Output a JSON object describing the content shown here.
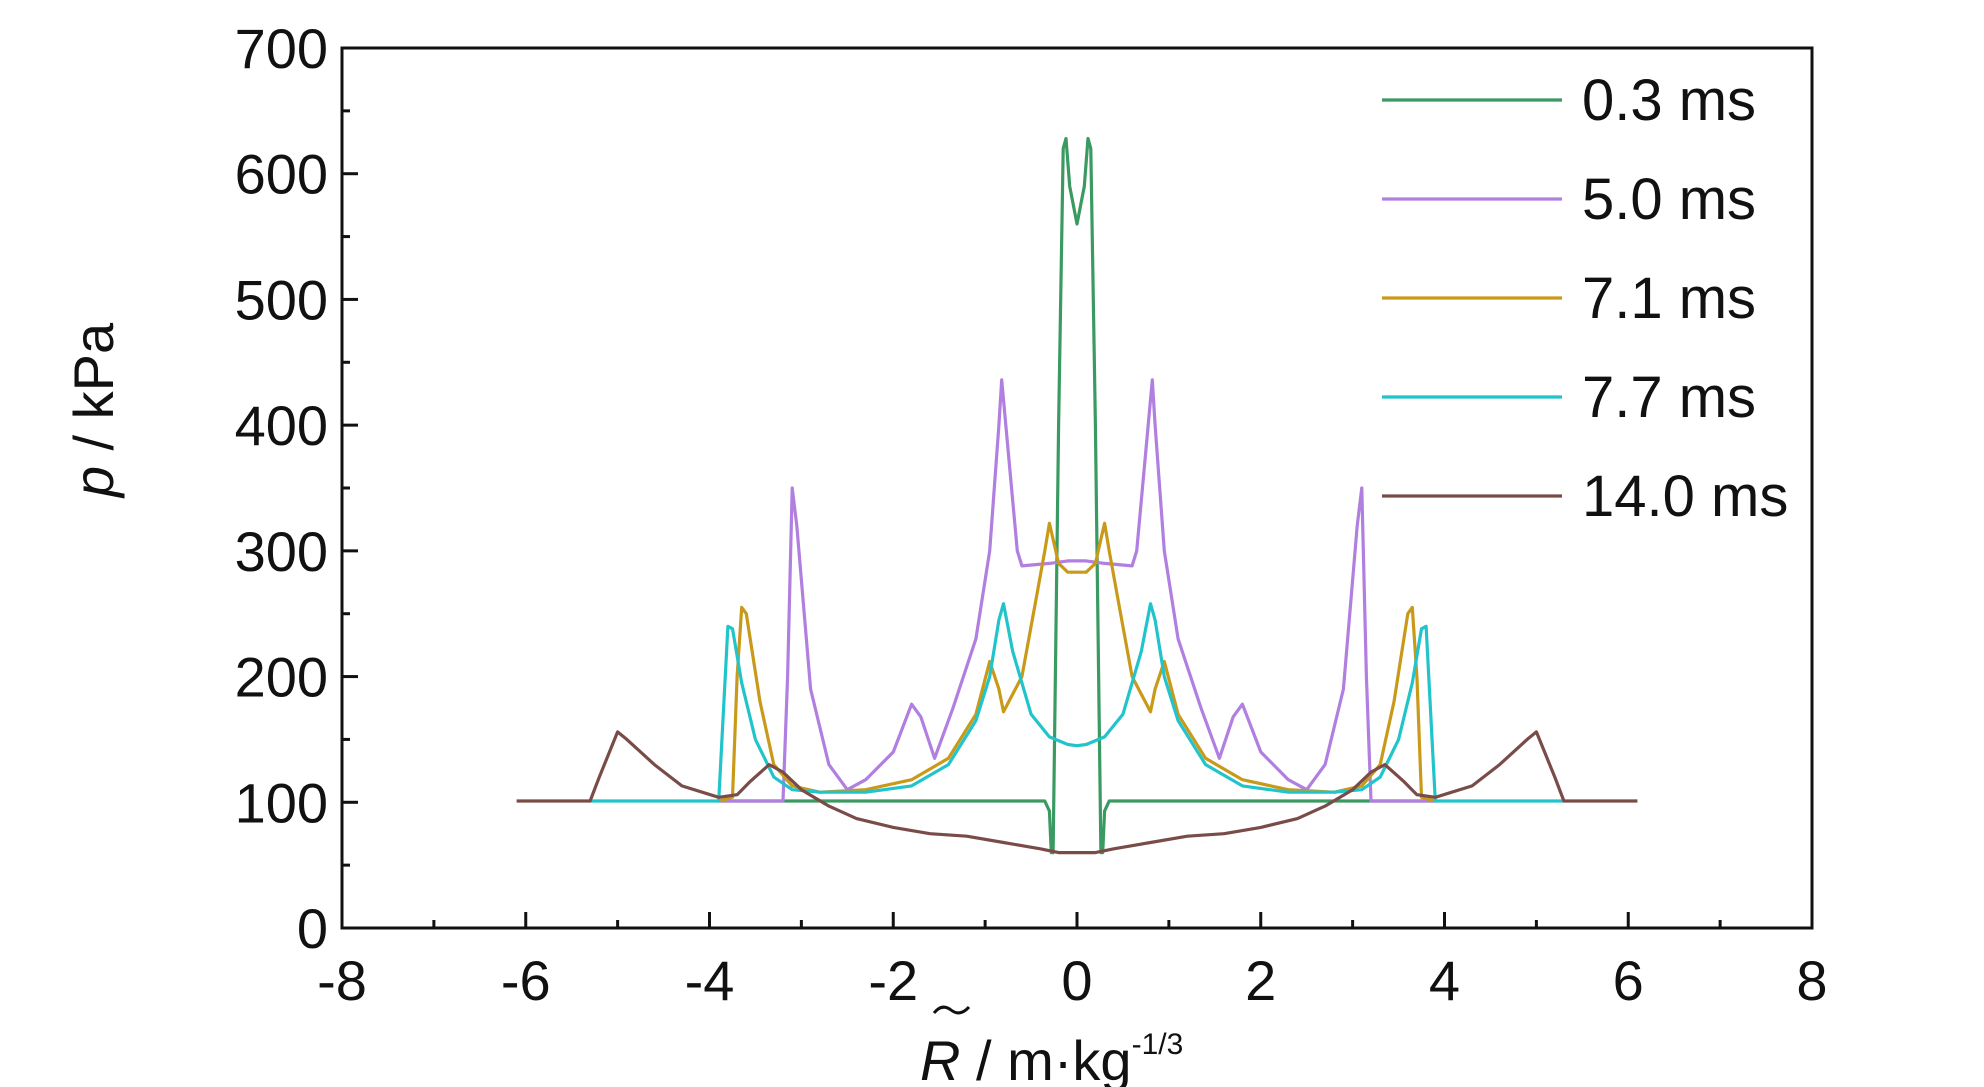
{
  "chart_data": {
    "type": "line",
    "xlabel": {
      "symbol": "R",
      "units": " / m·kg",
      "exponent": "-1/3"
    },
    "ylabel": {
      "symbol": "p",
      "units": " / kPa"
    },
    "xlim": [
      -8,
      8
    ],
    "ylim": [
      0,
      700
    ],
    "xticks": [
      -8,
      -6,
      -4,
      -2,
      0,
      2,
      4,
      6,
      8
    ],
    "yticks": [
      0,
      100,
      200,
      300,
      400,
      500,
      600,
      700
    ],
    "grid": false,
    "legend_position": "top-right",
    "series": [
      {
        "name": "0.3 ms",
        "color": "#3a9a62",
        "points": [
          [
            -3.9,
            101
          ],
          [
            -0.35,
            101
          ],
          [
            -0.3,
            93
          ],
          [
            -0.28,
            60
          ],
          [
            -0.26,
            60
          ],
          [
            -0.2,
            400
          ],
          [
            -0.15,
            620
          ],
          [
            -0.12,
            628
          ],
          [
            -0.08,
            590
          ],
          [
            0,
            560
          ],
          [
            0.08,
            590
          ],
          [
            0.12,
            628
          ],
          [
            0.15,
            620
          ],
          [
            0.2,
            400
          ],
          [
            0.26,
            60
          ],
          [
            0.28,
            60
          ],
          [
            0.3,
            93
          ],
          [
            0.35,
            101
          ],
          [
            3.9,
            101
          ]
        ]
      },
      {
        "name": "5.0 ms",
        "color": "#b07fe0",
        "points": [
          [
            -3.9,
            101
          ],
          [
            -3.2,
            101
          ],
          [
            -3.15,
            200
          ],
          [
            -3.1,
            350
          ],
          [
            -3.05,
            320
          ],
          [
            -2.9,
            190
          ],
          [
            -2.7,
            130
          ],
          [
            -2.5,
            110
          ],
          [
            -2.3,
            118
          ],
          [
            -2.0,
            140
          ],
          [
            -1.8,
            178
          ],
          [
            -1.7,
            168
          ],
          [
            -1.55,
            135
          ],
          [
            -1.35,
            175
          ],
          [
            -1.1,
            230
          ],
          [
            -0.95,
            300
          ],
          [
            -0.85,
            400
          ],
          [
            -0.82,
            436
          ],
          [
            -0.75,
            380
          ],
          [
            -0.65,
            300
          ],
          [
            -0.6,
            288
          ],
          [
            -0.3,
            290
          ],
          [
            -0.1,
            292
          ],
          [
            0,
            292
          ],
          [
            0.1,
            292
          ],
          [
            0.3,
            290
          ],
          [
            0.6,
            288
          ],
          [
            0.65,
            300
          ],
          [
            0.75,
            380
          ],
          [
            0.82,
            436
          ],
          [
            0.85,
            400
          ],
          [
            0.95,
            300
          ],
          [
            1.1,
            230
          ],
          [
            1.35,
            175
          ],
          [
            1.55,
            135
          ],
          [
            1.7,
            168
          ],
          [
            1.8,
            178
          ],
          [
            2.0,
            140
          ],
          [
            2.3,
            118
          ],
          [
            2.5,
            110
          ],
          [
            2.7,
            130
          ],
          [
            2.9,
            190
          ],
          [
            3.05,
            320
          ],
          [
            3.1,
            350
          ],
          [
            3.15,
            200
          ],
          [
            3.2,
            101
          ],
          [
            3.9,
            101
          ]
        ]
      },
      {
        "name": "7.1 ms",
        "color": "#c99a1a",
        "points": [
          [
            -3.9,
            101
          ],
          [
            -3.75,
            104
          ],
          [
            -3.7,
            200
          ],
          [
            -3.65,
            255
          ],
          [
            -3.6,
            250
          ],
          [
            -3.45,
            180
          ],
          [
            -3.3,
            130
          ],
          [
            -3.1,
            113
          ],
          [
            -2.8,
            108
          ],
          [
            -2.3,
            110
          ],
          [
            -1.8,
            118
          ],
          [
            -1.4,
            135
          ],
          [
            -1.1,
            170
          ],
          [
            -0.95,
            212
          ],
          [
            -0.85,
            190
          ],
          [
            -0.8,
            172
          ],
          [
            -0.6,
            200
          ],
          [
            -0.45,
            260
          ],
          [
            -0.35,
            300
          ],
          [
            -0.3,
            322
          ],
          [
            -0.2,
            290
          ],
          [
            -0.1,
            283
          ],
          [
            0,
            283
          ],
          [
            0.1,
            283
          ],
          [
            0.2,
            290
          ],
          [
            0.3,
            322
          ],
          [
            0.35,
            300
          ],
          [
            0.45,
            260
          ],
          [
            0.6,
            200
          ],
          [
            0.8,
            172
          ],
          [
            0.85,
            190
          ],
          [
            0.95,
            212
          ],
          [
            1.1,
            170
          ],
          [
            1.4,
            135
          ],
          [
            1.8,
            118
          ],
          [
            2.3,
            110
          ],
          [
            2.8,
            108
          ],
          [
            3.1,
            113
          ],
          [
            3.3,
            130
          ],
          [
            3.45,
            180
          ],
          [
            3.6,
            250
          ],
          [
            3.65,
            255
          ],
          [
            3.7,
            200
          ],
          [
            3.75,
            104
          ],
          [
            3.9,
            101
          ]
        ]
      },
      {
        "name": "7.7 ms",
        "color": "#22c4cc",
        "points": [
          [
            -5.3,
            101
          ],
          [
            -3.9,
            101
          ],
          [
            -3.8,
            240
          ],
          [
            -3.75,
            238
          ],
          [
            -3.65,
            195
          ],
          [
            -3.5,
            150
          ],
          [
            -3.3,
            120
          ],
          [
            -3.1,
            110
          ],
          [
            -2.8,
            108
          ],
          [
            -2.3,
            108
          ],
          [
            -1.8,
            113
          ],
          [
            -1.4,
            130
          ],
          [
            -1.1,
            165
          ],
          [
            -0.95,
            200
          ],
          [
            -0.85,
            245
          ],
          [
            -0.8,
            258
          ],
          [
            -0.7,
            220
          ],
          [
            -0.5,
            170
          ],
          [
            -0.3,
            152
          ],
          [
            -0.1,
            146
          ],
          [
            0,
            145
          ],
          [
            0.1,
            146
          ],
          [
            0.3,
            152
          ],
          [
            0.5,
            170
          ],
          [
            0.7,
            220
          ],
          [
            0.8,
            258
          ],
          [
            0.85,
            245
          ],
          [
            0.95,
            200
          ],
          [
            1.1,
            165
          ],
          [
            1.4,
            130
          ],
          [
            1.8,
            113
          ],
          [
            2.3,
            108
          ],
          [
            2.8,
            108
          ],
          [
            3.1,
            110
          ],
          [
            3.3,
            120
          ],
          [
            3.5,
            150
          ],
          [
            3.65,
            195
          ],
          [
            3.75,
            238
          ],
          [
            3.8,
            240
          ],
          [
            3.9,
            101
          ],
          [
            5.3,
            101
          ]
        ]
      },
      {
        "name": "14.0 ms",
        "color": "#7a4c48",
        "points": [
          [
            -6.1,
            101
          ],
          [
            -5.3,
            101
          ],
          [
            -5.2,
            120
          ],
          [
            -5.0,
            156
          ],
          [
            -4.9,
            150
          ],
          [
            -4.6,
            130
          ],
          [
            -4.3,
            113
          ],
          [
            -3.9,
            104
          ],
          [
            -3.7,
            106
          ],
          [
            -3.55,
            117
          ],
          [
            -3.35,
            130
          ],
          [
            -3.2,
            124
          ],
          [
            -3.0,
            110
          ],
          [
            -2.7,
            97
          ],
          [
            -2.4,
            87
          ],
          [
            -2.0,
            80
          ],
          [
            -1.6,
            75
          ],
          [
            -1.2,
            73
          ],
          [
            -0.8,
            68
          ],
          [
            -0.4,
            63
          ],
          [
            -0.2,
            60
          ],
          [
            0,
            60
          ],
          [
            0.2,
            60
          ],
          [
            0.4,
            63
          ],
          [
            0.8,
            68
          ],
          [
            1.2,
            73
          ],
          [
            1.6,
            75
          ],
          [
            2.0,
            80
          ],
          [
            2.4,
            87
          ],
          [
            2.7,
            97
          ],
          [
            3.0,
            110
          ],
          [
            3.2,
            124
          ],
          [
            3.35,
            130
          ],
          [
            3.55,
            117
          ],
          [
            3.7,
            106
          ],
          [
            3.9,
            104
          ],
          [
            4.3,
            113
          ],
          [
            4.6,
            130
          ],
          [
            4.9,
            150
          ],
          [
            5.0,
            156
          ],
          [
            5.2,
            120
          ],
          [
            5.3,
            101
          ],
          [
            6.1,
            101
          ]
        ]
      }
    ]
  }
}
